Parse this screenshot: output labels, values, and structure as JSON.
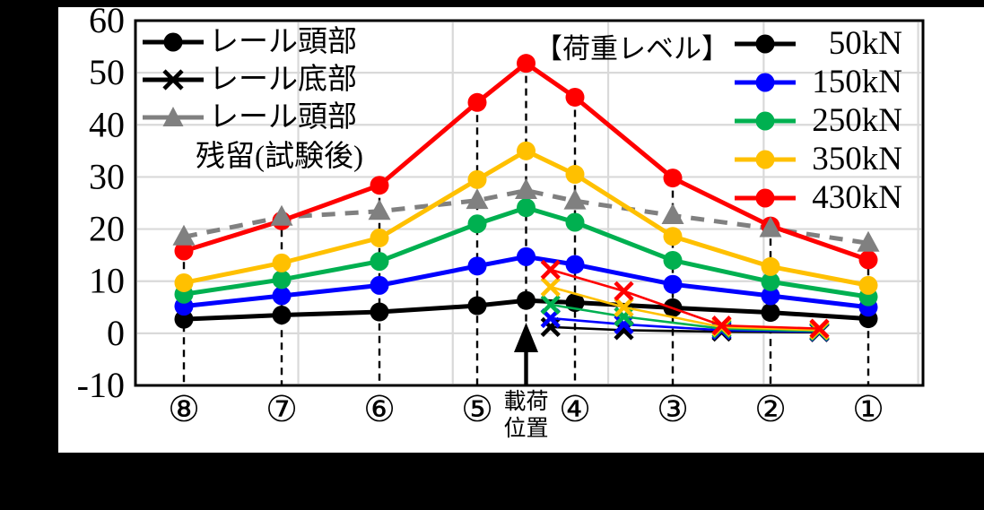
{
  "figure": {
    "background_color": "#000000",
    "paper_color": "#ffffff",
    "plot_border_color": "#000000",
    "gridline_color": "#d9d9d9"
  },
  "legend_series": {
    "items": [
      {
        "label": "レール頭部",
        "marker": {
          "shape": "circle",
          "color": "#000000"
        }
      },
      {
        "label": "レール底部",
        "marker": {
          "shape": "cross",
          "color": "#000000"
        }
      },
      {
        "label": "レール頭部",
        "label2": "残留(試験後)",
        "marker": {
          "shape": "triangle",
          "color": "#808080"
        }
      }
    ]
  },
  "legend_load": {
    "header": "【荷重レベル】",
    "items": [
      {
        "label": "50kN",
        "marker": {
          "shape": "circle",
          "color": "#000000"
        }
      },
      {
        "label": "150kN",
        "marker": {
          "shape": "circle",
          "color": "#0000ff"
        }
      },
      {
        "label": "250kN",
        "marker": {
          "shape": "circle",
          "color": "#00b050"
        }
      },
      {
        "label": "350kN",
        "marker": {
          "shape": "circle",
          "color": "#ffc000"
        }
      },
      {
        "label": "430kN",
        "marker": {
          "shape": "circle",
          "color": "#ff0000"
        }
      }
    ]
  },
  "chart_data": {
    "type": "line",
    "title": "",
    "xlabel": "",
    "ylabel": "",
    "y_axis": {
      "min": -10,
      "max": 60,
      "tick_step": 10,
      "tick_labels": [
        "60",
        "50",
        "40",
        "30",
        "20",
        "10",
        "0",
        "-10"
      ]
    },
    "x_axis": {
      "stations": [
        {
          "s": 0,
          "label": "⑧"
        },
        {
          "s": 1,
          "label": "⑦"
        },
        {
          "s": 2,
          "label": "⑥"
        },
        {
          "s": 3,
          "label": "⑤"
        },
        {
          "s": 4,
          "label": "④"
        },
        {
          "s": 5,
          "label": "③"
        },
        {
          "s": 6,
          "label": "②"
        },
        {
          "s": 7,
          "label": "①"
        }
      ],
      "loading_position": {
        "s": 3.5,
        "label_lines": [
          "載荷",
          "位置"
        ]
      },
      "x_gridlines_s": [
        1.17,
        2.75,
        4.34,
        5.93,
        7.51
      ]
    },
    "head_s": [
      0,
      1,
      2,
      3,
      3.5,
      4,
      5,
      6,
      7
    ],
    "head_series": [
      {
        "name": "50kN",
        "color": "#000000",
        "values": [
          2.7,
          3.5,
          4.1,
          5.3,
          6.3,
          5.9,
          4.9,
          4.0,
          2.8
        ]
      },
      {
        "name": "150kN",
        "color": "#0000ff",
        "values": [
          5.2,
          7.2,
          9.2,
          12.9,
          14.7,
          13.2,
          9.4,
          7.2,
          5.0
        ]
      },
      {
        "name": "250kN",
        "color": "#00b050",
        "values": [
          7.5,
          10.3,
          13.8,
          21.0,
          24.1,
          21.3,
          14.0,
          9.9,
          7.0
        ]
      },
      {
        "name": "350kN",
        "color": "#ffc000",
        "values": [
          9.7,
          13.5,
          18.3,
          29.5,
          35.0,
          30.5,
          18.6,
          12.8,
          9.2
        ]
      },
      {
        "name": "430kN",
        "color": "#ff0000",
        "values": [
          15.8,
          21.6,
          28.4,
          44.3,
          51.8,
          45.3,
          29.8,
          20.6,
          14.1
        ]
      }
    ],
    "residual_series": {
      "name": "レール頭部残留(試験後)",
      "color": "#808080",
      "s": [
        0,
        1,
        2,
        3,
        3.5,
        4,
        5,
        6,
        7
      ],
      "values": [
        18.5,
        22.3,
        23.4,
        25.5,
        27.4,
        25.4,
        22.6,
        20.1,
        17.3
      ]
    },
    "base_s": [
      3.75,
      4.5,
      5.5,
      6.5
    ],
    "base_series": [
      {
        "name": "50kN",
        "color": "#000000",
        "values": [
          1.2,
          0.6,
          0.3,
          0.2
        ]
      },
      {
        "name": "150kN",
        "color": "#0000ff",
        "values": [
          2.9,
          1.7,
          0.6,
          0.3
        ]
      },
      {
        "name": "250kN",
        "color": "#00b050",
        "values": [
          5.5,
          3.2,
          0.9,
          0.4
        ]
      },
      {
        "name": "350kN",
        "color": "#ffc000",
        "values": [
          8.9,
          5.0,
          1.2,
          0.6
        ]
      },
      {
        "name": "430kN",
        "color": "#ff0000",
        "values": [
          12.2,
          8.1,
          1.5,
          0.9
        ]
      }
    ],
    "legend_position": "top-left and top-right, inside plot",
    "grid": true
  }
}
